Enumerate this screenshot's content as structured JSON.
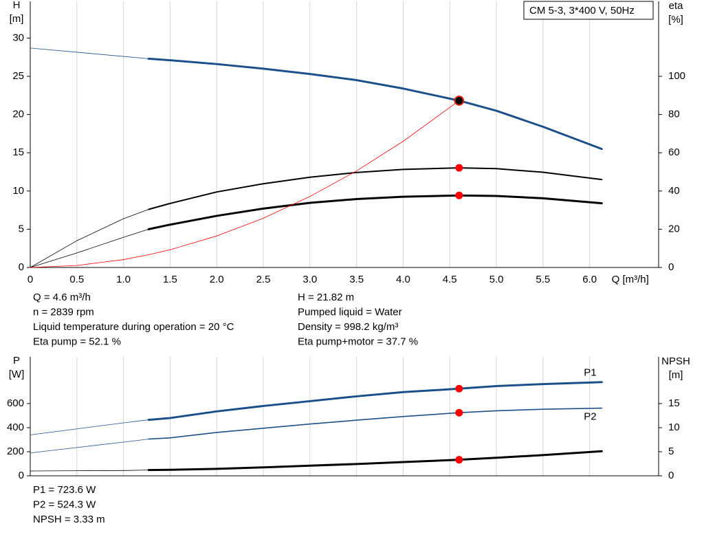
{
  "chart_data": [
    {
      "type": "line",
      "title": "CM 5-3, 3*400 V, 50Hz",
      "xlabel": "Q [m³/h]",
      "ylabel": [
        "H",
        "[m]"
      ],
      "y2label": [
        "eta",
        "[%]"
      ],
      "xlim": [
        0,
        6.74
      ],
      "ylim": [
        0,
        34.8
      ],
      "y2lim": [
        0,
        139.2
      ],
      "xticks": [
        0,
        0.5,
        {
          "value": 1,
          "label": "1.0"
        },
        1.5,
        {
          "value": 2,
          "label": "2.0"
        },
        2.5,
        {
          "value": 3,
          "label": "3.0"
        },
        3.5,
        {
          "value": 4,
          "label": "4.0"
        },
        4.5,
        {
          "value": 5,
          "label": "5.0"
        },
        5.5,
        {
          "value": 6,
          "label": "6.0"
        }
      ],
      "show_xtick_labels": true,
      "yticks": [
        0,
        5,
        10,
        15,
        20,
        25,
        30
      ],
      "y2ticks": [
        0,
        20,
        40,
        60,
        80,
        100
      ],
      "grid": true,
      "operating_range": [
        1.27,
        6.13
      ],
      "duty_x": 4.6,
      "x": [
        0,
        0.5,
        1.0,
        1.27,
        1.5,
        2.0,
        2.5,
        3.0,
        3.5,
        4.0,
        4.6,
        5.0,
        5.5,
        6.13
      ],
      "series": [
        {
          "color": "#1a4f8a",
          "width": 3,
          "marker_color": "#ffff00",
          "values": [
            28.7,
            28.15,
            27.6,
            27.3,
            27.1,
            26.6,
            26.0,
            25.3,
            24.5,
            23.4,
            21.82,
            20.5,
            18.4,
            15.5
          ]
        },
        {
          "color": "#000000",
          "width": 2,
          "axis": "y2",
          "marker_color": "#ff0000",
          "values": [
            0,
            14,
            25.5,
            30.4,
            33.5,
            39.5,
            43.8,
            47.2,
            49.7,
            51.3,
            52.1,
            51.7,
            49.8,
            46
          ]
        },
        {
          "color": "#000000",
          "width": 3,
          "axis": "y2",
          "marker_color": "#ff0000",
          "values": [
            0,
            7.6,
            15.8,
            20,
            22.4,
            27,
            30.8,
            33.8,
            35.8,
            37,
            37.7,
            37.4,
            36.2,
            33.6
          ]
        },
        {
          "color": "#ff0000",
          "width": 0.8,
          "values": [
            0,
            0.26,
            1.03,
            1.66,
            2.32,
            4.12,
            6.44,
            9.28,
            12.63,
            16.5,
            21.82,
            null,
            null,
            null
          ]
        }
      ],
      "notes_left": [
        "Q = 4.6 m³/h",
        "n = 2839 rpm",
        "Liquid temperature during operation = 20 °C",
        "Eta pump = 52.1 %"
      ],
      "notes_right": [
        "H = 21.82 m",
        "Pumped liquid = Water",
        "Density = 998.2 kg/m³",
        "Eta pump+motor = 37.7 %"
      ]
    },
    {
      "type": "line",
      "ylabel": [
        "P",
        "[W]"
      ],
      "y2label": [
        "NPSH",
        "[m]"
      ],
      "xlim": [
        0,
        6.74
      ],
      "ylim": [
        0,
        988
      ],
      "y2lim": [
        0,
        24.7
      ],
      "xticks": [
        0,
        0.5,
        1,
        1.5,
        2,
        2.5,
        3,
        3.5,
        4,
        4.5,
        5,
        5.5,
        6
      ],
      "show_xtick_labels": false,
      "yticks": [
        0,
        200,
        400,
        600
      ],
      "y2ticks": [
        0,
        5,
        10,
        15
      ],
      "grid": true,
      "operating_range": [
        1.27,
        6.13
      ],
      "duty_x": 4.6,
      "x": [
        0,
        0.5,
        1.0,
        1.27,
        1.5,
        2.0,
        2.5,
        3.0,
        3.5,
        4.0,
        4.6,
        5.0,
        5.5,
        6.13
      ],
      "series": [
        {
          "name": "P1",
          "label_position": "above",
          "color": "#1a4f8a",
          "width": 3,
          "marker_color": "#ff0000",
          "values": [
            340,
            390,
            440,
            465,
            480,
            535,
            580,
            620,
            660,
            695,
            723.6,
            745,
            762,
            778
          ]
        },
        {
          "name": "P2",
          "label_position": "below",
          "color": "#1a4f8a",
          "width": 1.6,
          "marker_color": "#ff0000",
          "values": [
            190,
            235,
            280,
            305,
            315,
            360,
            395,
            430,
            462,
            492,
            524.3,
            540,
            553,
            562
          ]
        },
        {
          "color": "#000000",
          "width": 3,
          "axis": "y2",
          "marker_color": "#ff0000",
          "values": [
            1.0,
            1.05,
            1.1,
            1.2,
            1.25,
            1.45,
            1.75,
            2.1,
            2.45,
            2.85,
            3.33,
            3.75,
            4.3,
            5.1
          ]
        }
      ],
      "notes_left": [
        "P1 = 723.6 W",
        "P2 = 524.3 W",
        "NPSH = 3.33 m"
      ]
    }
  ]
}
